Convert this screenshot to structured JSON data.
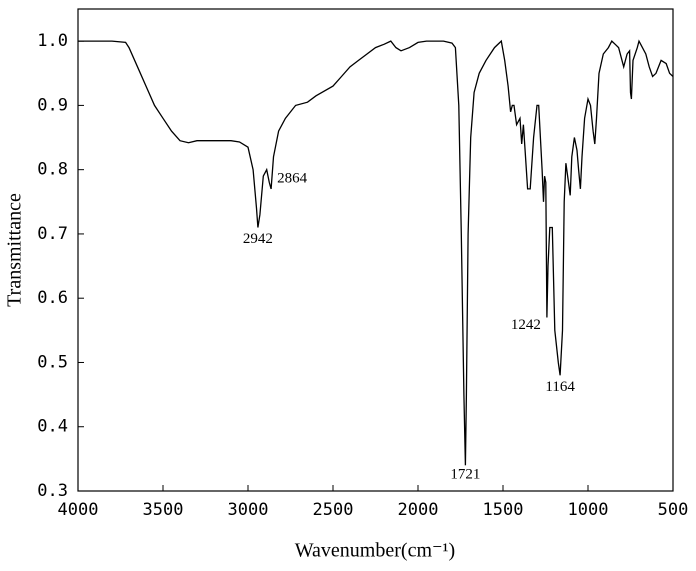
{
  "chart_data": {
    "type": "line",
    "xlabel": "Wavenumber(cm⁻¹)",
    "ylabel": "Transmittance",
    "x": [
      4000,
      3800,
      3720,
      3700,
      3650,
      3600,
      3550,
      3500,
      3450,
      3400,
      3350,
      3300,
      3200,
      3100,
      3050,
      3000,
      2970,
      2950,
      2942,
      2930,
      2910,
      2890,
      2875,
      2864,
      2850,
      2820,
      2780,
      2720,
      2650,
      2600,
      2500,
      2450,
      2400,
      2350,
      2300,
      2250,
      2200,
      2160,
      2130,
      2100,
      2050,
      2000,
      1950,
      1850,
      1800,
      1780,
      1760,
      1745,
      1730,
      1721,
      1715,
      1705,
      1690,
      1670,
      1640,
      1600,
      1550,
      1510,
      1490,
      1470,
      1455,
      1445,
      1435,
      1420,
      1400,
      1390,
      1380,
      1370,
      1355,
      1340,
      1320,
      1300,
      1290,
      1270,
      1262,
      1255,
      1248,
      1242,
      1235,
      1225,
      1210,
      1195,
      1175,
      1164,
      1150,
      1140,
      1130,
      1115,
      1105,
      1095,
      1080,
      1065,
      1055,
      1045,
      1035,
      1020,
      1000,
      985,
      970,
      960,
      950,
      935,
      910,
      880,
      860,
      840,
      820,
      800,
      790,
      770,
      755,
      750,
      745,
      735,
      710,
      700,
      690,
      660,
      640,
      620,
      600,
      570,
      540,
      520,
      500
    ],
    "series": [
      {
        "color": "#000000",
        "values": [
          1.0,
          1.0,
          0.998,
          0.99,
          0.96,
          0.93,
          0.9,
          0.88,
          0.86,
          0.845,
          0.842,
          0.845,
          0.845,
          0.845,
          0.843,
          0.835,
          0.8,
          0.74,
          0.71,
          0.73,
          0.79,
          0.8,
          0.78,
          0.77,
          0.82,
          0.86,
          0.88,
          0.9,
          0.905,
          0.915,
          0.93,
          0.945,
          0.96,
          0.97,
          0.98,
          0.99,
          0.995,
          1.0,
          0.99,
          0.985,
          0.99,
          0.998,
          1.0,
          1.0,
          0.997,
          0.99,
          0.9,
          0.7,
          0.45,
          0.34,
          0.45,
          0.7,
          0.85,
          0.92,
          0.95,
          0.97,
          0.99,
          1.0,
          0.97,
          0.93,
          0.89,
          0.9,
          0.9,
          0.87,
          0.88,
          0.84,
          0.87,
          0.83,
          0.77,
          0.77,
          0.85,
          0.9,
          0.9,
          0.8,
          0.75,
          0.79,
          0.78,
          0.57,
          0.65,
          0.71,
          0.71,
          0.55,
          0.5,
          0.48,
          0.55,
          0.75,
          0.81,
          0.78,
          0.76,
          0.82,
          0.85,
          0.83,
          0.8,
          0.77,
          0.82,
          0.88,
          0.91,
          0.9,
          0.86,
          0.84,
          0.88,
          0.95,
          0.98,
          0.99,
          1.0,
          0.995,
          0.99,
          0.97,
          0.96,
          0.98,
          0.985,
          0.92,
          0.91,
          0.97,
          0.99,
          1.0,
          0.995,
          0.98,
          0.96,
          0.945,
          0.95,
          0.97,
          0.965,
          0.95,
          0.945
        ]
      }
    ],
    "xlim": [
      4000,
      500
    ],
    "xticks": [
      4000,
      3500,
      3000,
      2500,
      2000,
      1500,
      1000,
      500
    ],
    "ylim": [
      0.3,
      1.05
    ],
    "yticks": [
      0.3,
      0.4,
      0.5,
      0.6,
      0.7,
      0.8,
      0.9,
      {
        "value": 1,
        "label": "1.0"
      }
    ],
    "annotations": [
      {
        "text": "2942",
        "x": 2942,
        "y": 0.71
      },
      {
        "text": "2864",
        "x": 2864,
        "y": 0.77
      },
      {
        "text": "1721",
        "x": 1721,
        "y": 0.34
      },
      {
        "text": "1242",
        "x": 1242,
        "y": 0.57
      },
      {
        "text": "1164",
        "x": 1164,
        "y": 0.48
      }
    ]
  }
}
